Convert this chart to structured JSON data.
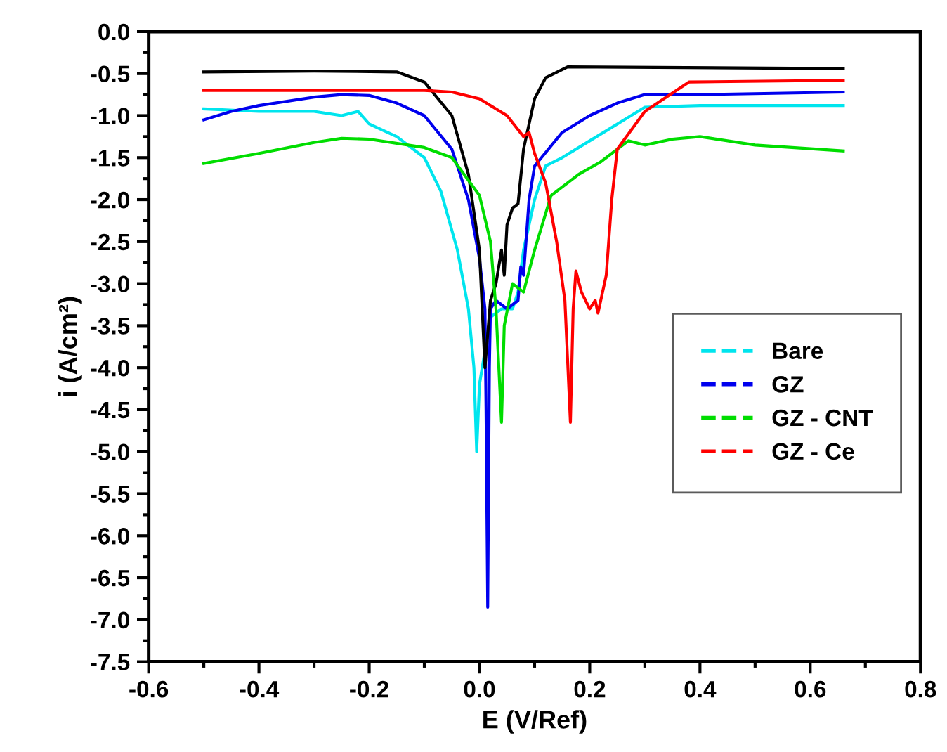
{
  "chart_data": {
    "type": "line",
    "xlabel": "E (V/Ref)",
    "ylabel": "i (A/cm²)",
    "xlim": [
      -0.6,
      0.8
    ],
    "xticks": [
      {
        "value": -0.6,
        "label": "-0.6"
      },
      {
        "value": -0.4,
        "label": "-0.4"
      },
      {
        "value": -0.2,
        "label": "-0.2"
      },
      {
        "value": 0,
        "label": "0.0"
      },
      {
        "value": 0.2,
        "label": "0.2"
      },
      {
        "value": 0.4,
        "label": "0.4"
      },
      {
        "value": 0.6,
        "label": "0.6"
      },
      {
        "value": 0.8,
        "label": "0.8"
      }
    ],
    "ylim": [
      -7.5,
      0
    ],
    "yticks": [
      {
        "value": 0,
        "label": "0.0"
      },
      {
        "value": -0.5,
        "label": "-0.5"
      },
      {
        "value": -1,
        "label": "-1.0"
      },
      {
        "value": -1.5,
        "label": "-1.5"
      },
      {
        "value": -2,
        "label": "-2.0"
      },
      {
        "value": -2.5,
        "label": "-2.5"
      },
      {
        "value": -3,
        "label": "-3.0"
      },
      {
        "value": -3.5,
        "label": "-3.5"
      },
      {
        "value": -4,
        "label": "-4.0"
      },
      {
        "value": -4.5,
        "label": "-4.5"
      },
      {
        "value": -5,
        "label": "-5.0"
      },
      {
        "value": -5.5,
        "label": "-5.5"
      },
      {
        "value": -6,
        "label": "-6.0"
      },
      {
        "value": -6.5,
        "label": "-6.5"
      },
      {
        "value": -7,
        "label": "-7.0"
      },
      {
        "value": -7.5,
        "label": "-7.5"
      }
    ],
    "grid": false,
    "legend": "bottom right",
    "line_style": "solid",
    "marker": "none",
    "series": [
      {
        "name": "Bare",
        "color": "#00e5ee",
        "x": [
          -0.5,
          -0.4,
          -0.3,
          -0.25,
          -0.22,
          -0.2,
          -0.15,
          -0.1,
          -0.07,
          -0.04,
          -0.02,
          -0.01,
          -0.005,
          0.0,
          0.02,
          0.04,
          0.06,
          0.07,
          0.08,
          0.1,
          0.12,
          0.15,
          0.2,
          0.25,
          0.3,
          0.4,
          0.5,
          0.66
        ],
        "values": [
          -0.92,
          -0.95,
          -0.95,
          -1.0,
          -0.95,
          -1.1,
          -1.25,
          -1.5,
          -1.9,
          -2.6,
          -3.3,
          -4.0,
          -5.0,
          -4.2,
          -3.4,
          -3.3,
          -3.3,
          -3.1,
          -2.6,
          -2.0,
          -1.6,
          -1.5,
          -1.3,
          -1.1,
          -0.9,
          -0.88,
          -0.88,
          -0.88
        ]
      },
      {
        "name": "GZ",
        "color": "#0000ee",
        "x": [
          -0.5,
          -0.45,
          -0.4,
          -0.3,
          -0.25,
          -0.2,
          -0.15,
          -0.1,
          -0.05,
          -0.02,
          0.0,
          0.01,
          0.012,
          0.015,
          0.018,
          0.02,
          0.03,
          0.05,
          0.07,
          0.075,
          0.08,
          0.09,
          0.1,
          0.15,
          0.2,
          0.25,
          0.3,
          0.4,
          0.66
        ],
        "values": [
          -1.05,
          -0.95,
          -0.88,
          -0.78,
          -0.75,
          -0.76,
          -0.85,
          -1.0,
          -1.4,
          -2.0,
          -2.7,
          -3.3,
          -4.5,
          -6.85,
          -4.0,
          -3.3,
          -3.2,
          -3.3,
          -3.2,
          -2.8,
          -2.9,
          -2.0,
          -1.6,
          -1.2,
          -1.0,
          -0.85,
          -0.75,
          -0.75,
          -0.72
        ]
      },
      {
        "color": "#000000",
        "x": [
          -0.5,
          -0.3,
          -0.15,
          -0.1,
          -0.05,
          -0.02,
          0.0,
          0.01,
          0.02,
          0.03,
          0.04,
          0.045,
          0.05,
          0.06,
          0.07,
          0.08,
          0.1,
          0.12,
          0.16,
          0.66
        ],
        "values": [
          -0.48,
          -0.47,
          -0.48,
          -0.6,
          -1.0,
          -1.7,
          -2.6,
          -4.0,
          -3.2,
          -3.0,
          -2.6,
          -2.9,
          -2.3,
          -2.1,
          -2.05,
          -1.4,
          -0.8,
          -0.55,
          -0.42,
          -0.44
        ]
      },
      {
        "name": "GZ - CNT",
        "color": "#00dd00",
        "x": [
          -0.5,
          -0.4,
          -0.3,
          -0.25,
          -0.2,
          -0.1,
          -0.05,
          0.0,
          0.02,
          0.03,
          0.04,
          0.045,
          0.06,
          0.08,
          0.1,
          0.13,
          0.18,
          0.22,
          0.27,
          0.3,
          0.35,
          0.4,
          0.5,
          0.66
        ],
        "values": [
          -1.57,
          -1.45,
          -1.32,
          -1.27,
          -1.28,
          -1.38,
          -1.5,
          -1.95,
          -2.5,
          -3.3,
          -4.65,
          -3.5,
          -3.0,
          -3.1,
          -2.6,
          -1.95,
          -1.7,
          -1.55,
          -1.3,
          -1.35,
          -1.28,
          -1.25,
          -1.35,
          -1.42
        ]
      },
      {
        "name": "GZ - Ce",
        "color": "#ff0000",
        "x": [
          -0.5,
          -0.1,
          -0.05,
          0.0,
          0.05,
          0.08,
          0.09,
          0.1,
          0.12,
          0.14,
          0.155,
          0.165,
          0.17,
          0.175,
          0.185,
          0.2,
          0.21,
          0.215,
          0.23,
          0.24,
          0.25,
          0.3,
          0.38,
          0.66
        ],
        "values": [
          -0.7,
          -0.7,
          -0.72,
          -0.8,
          -1.0,
          -1.25,
          -1.2,
          -1.45,
          -1.8,
          -2.5,
          -3.2,
          -4.65,
          -3.3,
          -2.85,
          -3.1,
          -3.3,
          -3.2,
          -3.35,
          -2.9,
          -2.0,
          -1.4,
          -0.95,
          -0.6,
          -0.58
        ]
      }
    ]
  }
}
